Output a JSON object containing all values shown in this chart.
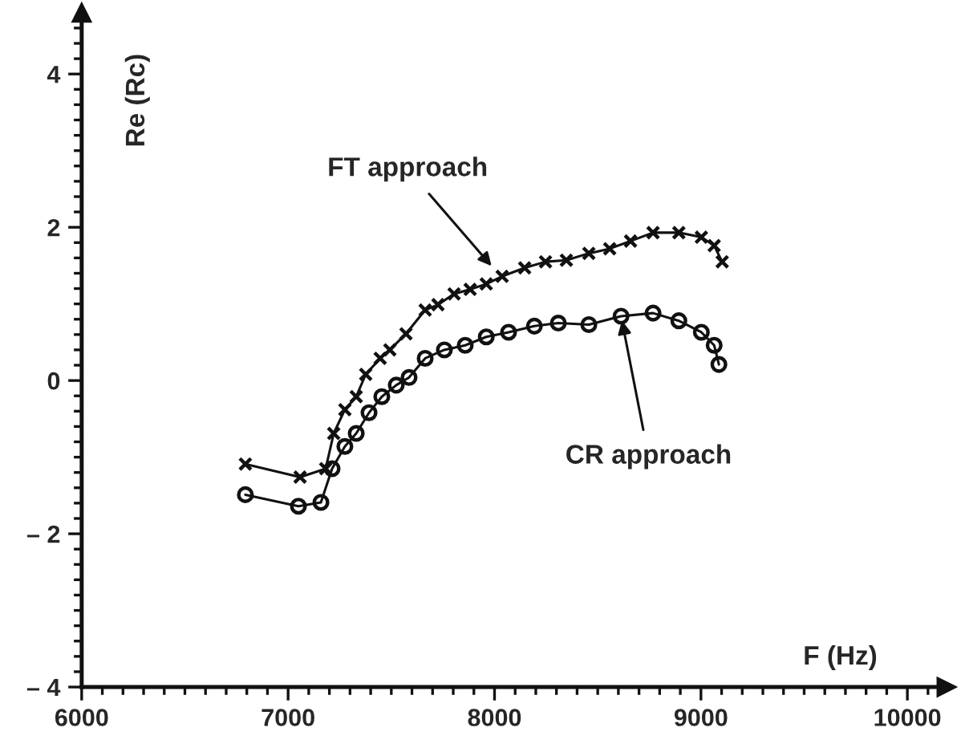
{
  "chart_data": {
    "type": "line",
    "xlabel": "F (Hz)",
    "ylabel": "Re (Rc)",
    "xlim": [
      6000,
      10190
    ],
    "ylim": [
      -4,
      4.8
    ],
    "xticks": [
      6000,
      7000,
      8000,
      9000,
      10000
    ],
    "yticks": [
      {
        "value": -4,
        "label": "– 4"
      },
      {
        "value": -2,
        "label": "– 2"
      },
      0,
      2,
      4
    ],
    "grid": false,
    "legend": false,
    "line_style": "solid",
    "series": [
      {
        "marker": "cross",
        "color": "#111111",
        "x": [
          6793,
          7058,
          7182,
          7221,
          7275,
          7330,
          7376,
          7446,
          7493,
          7571,
          7664,
          7726,
          7804,
          7882,
          7960,
          8037,
          8146,
          8247,
          8348,
          8457,
          8558,
          8659,
          8768,
          8893,
          9002,
          9064,
          9103
        ],
        "values": [
          -1.09,
          -1.26,
          -1.15,
          -0.69,
          -0.38,
          -0.21,
          0.08,
          0.29,
          0.4,
          0.61,
          0.92,
          0.99,
          1.13,
          1.19,
          1.26,
          1.36,
          1.47,
          1.55,
          1.57,
          1.66,
          1.72,
          1.82,
          1.93,
          1.93,
          1.87,
          1.76,
          1.55
        ]
      },
      {
        "marker": "circle",
        "color": "#111111",
        "x": [
          6793,
          7050,
          7159,
          7213,
          7275,
          7330,
          7392,
          7454,
          7524,
          7586,
          7664,
          7757,
          7858,
          7960,
          8068,
          8193,
          8309,
          8457,
          8613,
          8768,
          8893,
          9002,
          9064,
          9087
        ],
        "values": [
          -1.49,
          -1.64,
          -1.59,
          -1.15,
          -0.86,
          -0.69,
          -0.42,
          -0.21,
          -0.06,
          0.04,
          0.29,
          0.4,
          0.46,
          0.57,
          0.63,
          0.71,
          0.75,
          0.73,
          0.84,
          0.88,
          0.78,
          0.63,
          0.46,
          0.21
        ]
      }
    ],
    "annotations": [
      {
        "text": "FT approach",
        "x": 8000,
        "y": 1.45
      },
      {
        "text": "CR approach",
        "x": 8613,
        "y": 0.84
      }
    ]
  }
}
